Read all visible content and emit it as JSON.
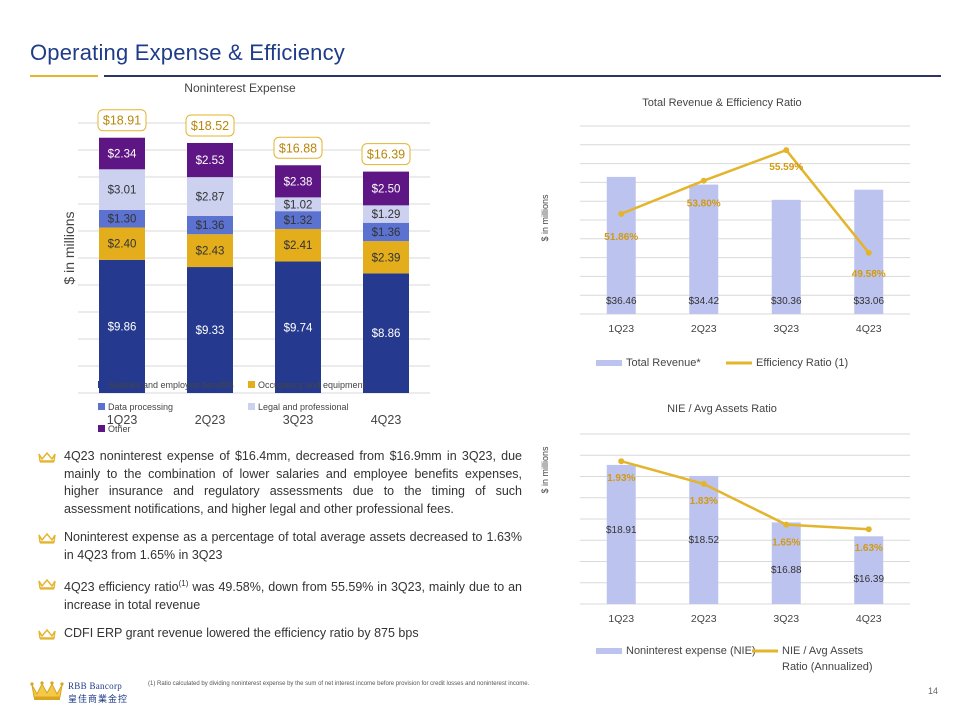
{
  "page": {
    "title": "Operating Expense & Efficiency",
    "page_number": "14",
    "footnote": "(1) Ratio calculated by dividing noninterest expense by the sum of net interest income before provision for credit losses and noninterest income.",
    "logo": {
      "name_en": "RBB Bancorp",
      "name_zh": "皇佳商業金控"
    },
    "colors": {
      "navy": "#1f3c88",
      "gold": "#e3b42c",
      "slate": "#5b6fc9",
      "lavender": "#c7cdf0",
      "purple": "#6a1b8a",
      "bar_light": "#bdc3ef",
      "line_gold": "#e3b42c"
    }
  },
  "bullets": [
    {
      "text": "4Q23 noninterest expense of $16.4mm, decreased from $16.9mm in 3Q23, due mainly to the combination of lower salaries and employee benefits expenses, higher insurance and regulatory assessments due to the timing of such assessment notifications, and higher legal and other professional fees."
    },
    {
      "text": "Noninterest expense as a percentage of total average assets decreased to 1.63% in 4Q23 from 1.65% in 3Q23"
    },
    {
      "text_pre": "4Q23 efficiency ratio",
      "sup": "(1)",
      "text_post": " was 49.58%, down from 55.59% in 3Q23, mainly due to an increase in total revenue"
    },
    {
      "text": "CDFI ERP grant revenue lowered the efficiency ratio by 875 bps"
    }
  ],
  "chart_data": [
    {
      "type": "bar",
      "stacked": true,
      "title": "Noninterest Expense",
      "ylabel": "$ in millions",
      "categories": [
        "1Q23",
        "2Q23",
        "3Q23",
        "4Q23"
      ],
      "totals": [
        "$18.91",
        "$18.52",
        "$16.88",
        "$16.39"
      ],
      "ylim": [
        0,
        20
      ],
      "grid": true,
      "legend_placement": "bottom",
      "series": [
        {
          "name": "Salaries and employee benefits",
          "values": [
            9.86,
            9.33,
            9.74,
            8.86
          ],
          "labels": [
            "$9.86",
            "$9.33",
            "$9.74",
            "$8.86"
          ],
          "color": "#253a8e",
          "label_color": "#ffffff"
        },
        {
          "name": "Occupancy and equipment",
          "values": [
            2.4,
            2.43,
            2.41,
            2.39
          ],
          "labels": [
            "$2.40",
            "$2.43",
            "$2.41",
            "$2.39"
          ],
          "color": "#e3ad1c",
          "label_color": "#333333"
        },
        {
          "name": "Data processing",
          "values": [
            1.3,
            1.36,
            1.32,
            1.36
          ],
          "labels": [
            "$1.30",
            "$1.36",
            "$1.32",
            "$1.36"
          ],
          "color": "#5b72d0",
          "label_color": "#333333"
        },
        {
          "name": "Legal and professional",
          "values": [
            3.01,
            2.87,
            1.02,
            1.29
          ],
          "labels": [
            "$3.01",
            "$2.87",
            "$1.02",
            "$1.29"
          ],
          "color": "#ccd1f0",
          "label_color": "#333333"
        },
        {
          "name": "Other",
          "values": [
            2.34,
            2.53,
            2.38,
            2.5
          ],
          "labels": [
            "$2.34",
            "$2.53",
            "$2.38",
            "$2.50"
          ],
          "color": "#5f1685",
          "label_color": "#ffffff"
        }
      ]
    },
    {
      "type": "bar",
      "title": "Total Revenue & Efficiency Ratio",
      "ylabel": "$ in millions",
      "categories": [
        "1Q23",
        "2Q23",
        "3Q23",
        "4Q23"
      ],
      "grid": true,
      "legend_placement": "bottom",
      "series": [
        {
          "name": "Total Revenue*",
          "kind": "bar",
          "values": [
            36.46,
            34.42,
            30.36,
            33.06
          ],
          "labels": [
            "$36.46",
            "$34.42",
            "$30.36",
            "$33.06"
          ],
          "ylim": [
            0,
            50
          ]
        },
        {
          "name": "Efficiency Ratio (1)",
          "kind": "line",
          "values": [
            51.86,
            53.8,
            55.59,
            49.58
          ],
          "labels": [
            "51.86%",
            "53.80%",
            "55.59%",
            "49.58%"
          ],
          "ylim": [
            46,
            57
          ]
        }
      ]
    },
    {
      "type": "bar",
      "title": "NIE / Avg Assets Ratio",
      "ylabel": "$ in millions",
      "categories": [
        "1Q23",
        "2Q23",
        "3Q23",
        "4Q23"
      ],
      "grid": true,
      "legend_placement": "bottom",
      "series": [
        {
          "name": "Noninterest expense (NIE)",
          "kind": "bar",
          "values": [
            18.91,
            18.52,
            16.88,
            16.39
          ],
          "labels": [
            "$18.91",
            "$18.52",
            "$16.88",
            "$16.39"
          ],
          "ylim": [
            14,
            20
          ]
        },
        {
          "name": "NIE / Avg Assets Ratio (Annualized)",
          "kind": "line",
          "values": [
            1.93,
            1.83,
            1.65,
            1.63
          ],
          "labels": [
            "1.93%",
            "1.83%",
            "1.65%",
            "1.63%"
          ],
          "ylim": [
            1.3,
            2.05
          ]
        }
      ]
    }
  ]
}
